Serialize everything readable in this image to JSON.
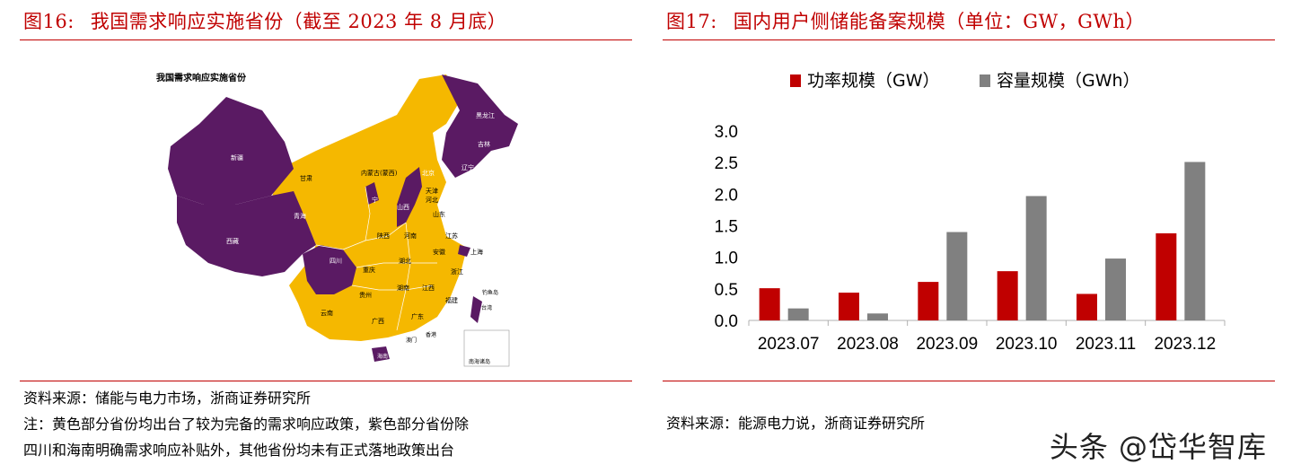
{
  "left_figure": {
    "number": "图16:",
    "title": "我国需求响应实施省份（截至 2023 年 8 月底）",
    "map_title": "我国需求响应实施省份",
    "purple_color": "#5a1a63",
    "yellow_color": "#f5b800",
    "region_labels": {
      "heilongjiang": "黑龙江",
      "jilin": "吉林",
      "liaoning": "辽宁",
      "xinjiang": "新疆",
      "neimenggu": "内蒙古(蒙西)",
      "beijing": "北京",
      "tianjin": "天津",
      "hebei": "河北",
      "gansu": "甘肃",
      "ningxia": "宁",
      "shanxi": "山西",
      "shandong": "山东",
      "qinghai": "青海",
      "xizang": "西藏",
      "shaanxi": "陕西",
      "henan": "河南",
      "jiangsu": "江苏",
      "anhui": "安徽",
      "shanghai": "上海",
      "sichuan": "四川",
      "chongqing": "重庆",
      "hubei": "湖北",
      "zhejiang": "浙江",
      "guizhou": "贵州",
      "hunan": "湖南",
      "jiangxi": "江西",
      "fujian": "福建",
      "yunnan": "云南",
      "guangxi": "广西",
      "guangdong": "广东",
      "aomen": "澳门",
      "xianggang": "香港",
      "hainan": "海南",
      "taiwan": "台湾",
      "diaoyudao": "钓鱼岛",
      "nanhai": "南海诸岛"
    },
    "source": "资料来源：储能与电力市场，浙商证券研究所",
    "note_line1": "注：黄色部分省份均出台了较为完备的需求响应政策，紫色部分省份除",
    "note_line2": "四川和海南明确需求响应补贴外，其他省份均未有正式落地政策出台"
  },
  "right_figure": {
    "number": "图17:",
    "title": "国内用户侧储能备案规模（单位：GW，GWh）",
    "source": "资料来源：能源电力说，浙商证券研究所"
  },
  "chart_data": {
    "type": "bar",
    "title": "",
    "xlabel": "",
    "ylabel": "",
    "categories": [
      "2023.07",
      "2023.08",
      "2023.09",
      "2023.10",
      "2023.11",
      "2023.12"
    ],
    "series": [
      {
        "name": "功率规模（GW）",
        "color": "#c00000",
        "values": [
          0.51,
          0.44,
          0.61,
          0.78,
          0.42,
          1.38
        ]
      },
      {
        "name": "容量规模（GWh）",
        "color": "#808080",
        "values": [
          0.19,
          0.11,
          1.4,
          1.97,
          0.98,
          2.51
        ]
      }
    ],
    "ylim": [
      0,
      3.0
    ],
    "yticks": [
      "0.0",
      "0.5",
      "1.0",
      "1.5",
      "2.0",
      "2.5",
      "3.0"
    ],
    "legend_position": "top",
    "grid": false
  },
  "watermark": "头条 @岱华智库"
}
